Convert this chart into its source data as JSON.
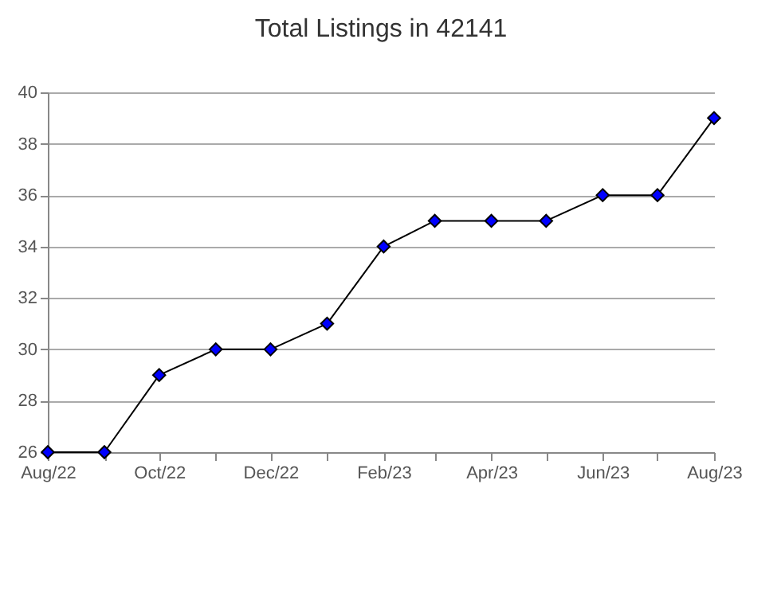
{
  "chart_data": {
    "type": "line",
    "title": "Total Listings in 42141",
    "x": [
      "2022-08",
      "2022-09",
      "2022-10",
      "2022-11",
      "2022-12",
      "2023-01",
      "2023-02",
      "2023-03",
      "2023-04",
      "2023-05",
      "2023-06",
      "2023-07",
      "2023-08"
    ],
    "series": [
      {
        "color": "#0000ff",
        "values": [
          26,
          26,
          29,
          30,
          30,
          31,
          34,
          35,
          35,
          35,
          36,
          36,
          39
        ]
      }
    ],
    "xlim": [
      "2022-08",
      "2023-08"
    ],
    "xticks": [
      {
        "value": "2022-08",
        "label": "Aug/22"
      },
      {
        "value": "2022-09",
        "label": null
      },
      {
        "value": "2022-10",
        "label": "Oct/22"
      },
      {
        "value": "2022-11",
        "label": null
      },
      {
        "value": "2022-12",
        "label": "Dec/22"
      },
      {
        "value": "2023-01",
        "label": null
      },
      {
        "value": "2023-02",
        "label": "Feb/23"
      },
      {
        "value": "2023-03",
        "label": null
      },
      {
        "value": "2023-04",
        "label": "Apr/23"
      },
      {
        "value": "2023-05",
        "label": null
      },
      {
        "value": "2023-06",
        "label": "Jun/23"
      },
      {
        "value": "2023-07",
        "label": null
      },
      {
        "value": "2023-08",
        "label": "Aug/23"
      }
    ],
    "ylim": [
      26,
      40
    ],
    "yticks": [
      26,
      28,
      30,
      32,
      34,
      36,
      38,
      40
    ],
    "grid": "y",
    "marker": "diamond",
    "line_style": "solid"
  }
}
